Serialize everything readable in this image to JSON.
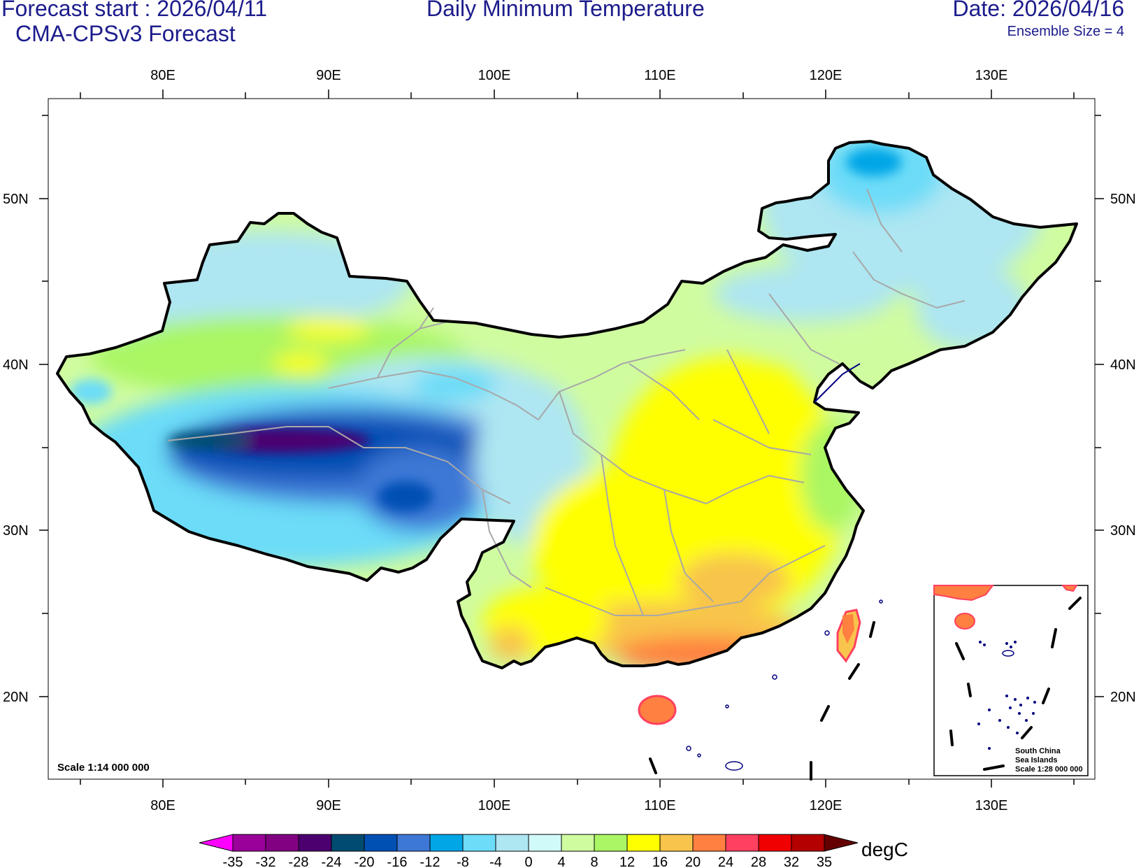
{
  "header": {
    "forecast_start": "Forecast start : 2026/04/11",
    "model": "CMA-CPSv3 Forecast",
    "title": "Daily Minimum Temperature",
    "date": "Date: 2026/04/16",
    "ensemble": "Ensemble Size = 4"
  },
  "map": {
    "lon_labels": [
      "80E",
      "90E",
      "100E",
      "110E",
      "120E",
      "130E"
    ],
    "lat_labels": [
      "50N",
      "40N",
      "30N",
      "20N"
    ],
    "scale_main": "Scale 1:14 000 000",
    "inset_lines": [
      "South China",
      "Sea Islands",
      "Scale 1:28 000 000"
    ]
  },
  "colorbar": {
    "unit": "degC",
    "ticks": [
      "-35",
      "-32",
      "-28",
      "-24",
      "-20",
      "-16",
      "-12",
      "-8",
      "-4",
      "0",
      "4",
      "8",
      "12",
      "16",
      "20",
      "24",
      "28",
      "32",
      "35"
    ],
    "colors": [
      "#9a009a",
      "#820082",
      "#4c0070",
      "#004c70",
      "#0050b4",
      "#3e78d6",
      "#00a6e6",
      "#6cdcf8",
      "#aee6f2",
      "#d0fafa",
      "#d0fca0",
      "#aaf664",
      "#ffff00",
      "#f8c44c",
      "#ff8040",
      "#ff4060",
      "#f00000",
      "#b40000"
    ],
    "under_color": "#ff00ff",
    "over_color": "#640000"
  }
}
